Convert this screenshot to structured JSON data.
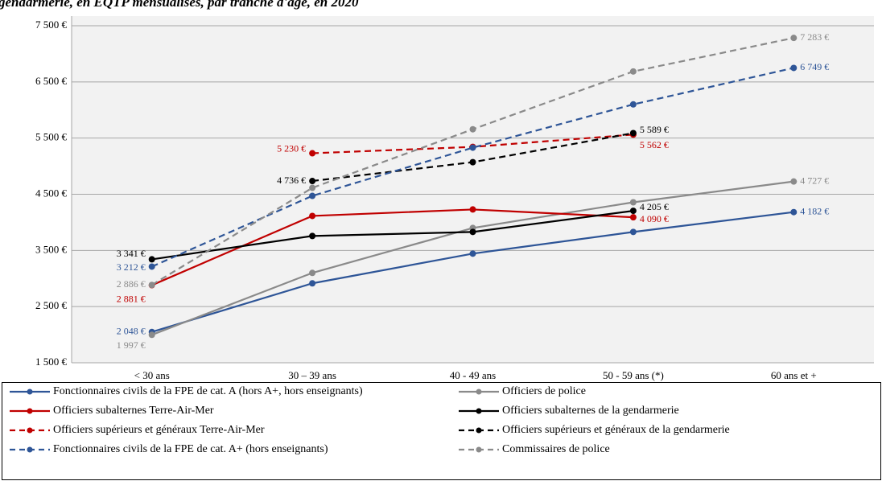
{
  "chart_data": {
    "type": "line",
    "title": "gendarmerie, en EQTP mensualisés, par tranche d'âge, en 2020",
    "categories": [
      "< 30 ans",
      "30 – 39 ans",
      "40 - 49 ans",
      "50 - 59 ans (*)",
      "60 ans et +"
    ],
    "ylim": [
      1500,
      7500
    ],
    "yticks": [
      {
        "value": 1500,
        "label": "1 500 €"
      },
      {
        "value": 2500,
        "label": "2 500 €"
      },
      {
        "value": 3500,
        "label": "3 500 €"
      },
      {
        "value": 4500,
        "label": "4 500 €"
      },
      {
        "value": 5500,
        "label": "5 500 €"
      },
      {
        "value": 6500,
        "label": "6 500 €"
      },
      {
        "value": 7500,
        "label": "7 500 €"
      }
    ],
    "grid": true,
    "legend": "bottom",
    "series": [
      {
        "name": "Fonctionnaires civils de la FPE de cat. A (hors A+, hors enseignants)",
        "color": "#2e5597",
        "line_style": "solid",
        "values": [
          2048,
          2914,
          3443,
          3829,
          4182
        ],
        "value_labels": [
          "2 048 €",
          null,
          null,
          null,
          "4 182 €"
        ]
      },
      {
        "name": "Officiers de police",
        "color": "#8a8a8a",
        "line_style": "solid",
        "values": [
          1997,
          3100,
          3900,
          4357,
          4727
        ],
        "value_labels": [
          "1 997 €",
          null,
          null,
          null,
          "4 727 €"
        ]
      },
      {
        "name": "Officiers subalternes Terre-Air-Mer",
        "color": "#c00000",
        "line_style": "solid",
        "values": [
          2881,
          4114,
          4229,
          4090,
          null
        ],
        "value_labels": [
          "2 881 €",
          null,
          null,
          "4 090 €",
          null
        ]
      },
      {
        "name": "Officiers subalternes de la gendarmerie",
        "color": "#000000",
        "line_style": "solid",
        "values": [
          3341,
          3757,
          3829,
          4205,
          null
        ],
        "value_labels": [
          "3 341 €",
          null,
          null,
          "4 205 €",
          null
        ]
      },
      {
        "name": "Officiers supérieurs et généraux Terre-Air-Mer",
        "color": "#c00000",
        "line_style": "dashed",
        "values": [
          null,
          5230,
          5343,
          5562,
          null
        ],
        "value_labels": [
          null,
          "5 230 €",
          null,
          "5 562 €",
          null
        ]
      },
      {
        "name": "Officiers supérieurs et généraux de la gendarmerie",
        "color": "#000000",
        "line_style": "dashed",
        "values": [
          null,
          4736,
          5071,
          5589,
          null
        ],
        "value_labels": [
          null,
          "4 736 €",
          null,
          "5 589 €",
          null
        ]
      },
      {
        "name": "Fonctionnaires civils de la FPE de cat. A+ (hors enseignants)",
        "color": "#2e5597",
        "line_style": "dashed",
        "values": [
          3212,
          4471,
          5329,
          6100,
          6749
        ],
        "value_labels": [
          "3 212 €",
          null,
          null,
          null,
          "6 749 €"
        ]
      },
      {
        "name": "Commissaires de police",
        "color": "#8a8a8a",
        "line_style": "dashed",
        "values": [
          2886,
          4614,
          5657,
          6686,
          7283
        ],
        "value_labels": [
          "2 886 €",
          null,
          null,
          null,
          "7 283 €"
        ]
      }
    ]
  }
}
